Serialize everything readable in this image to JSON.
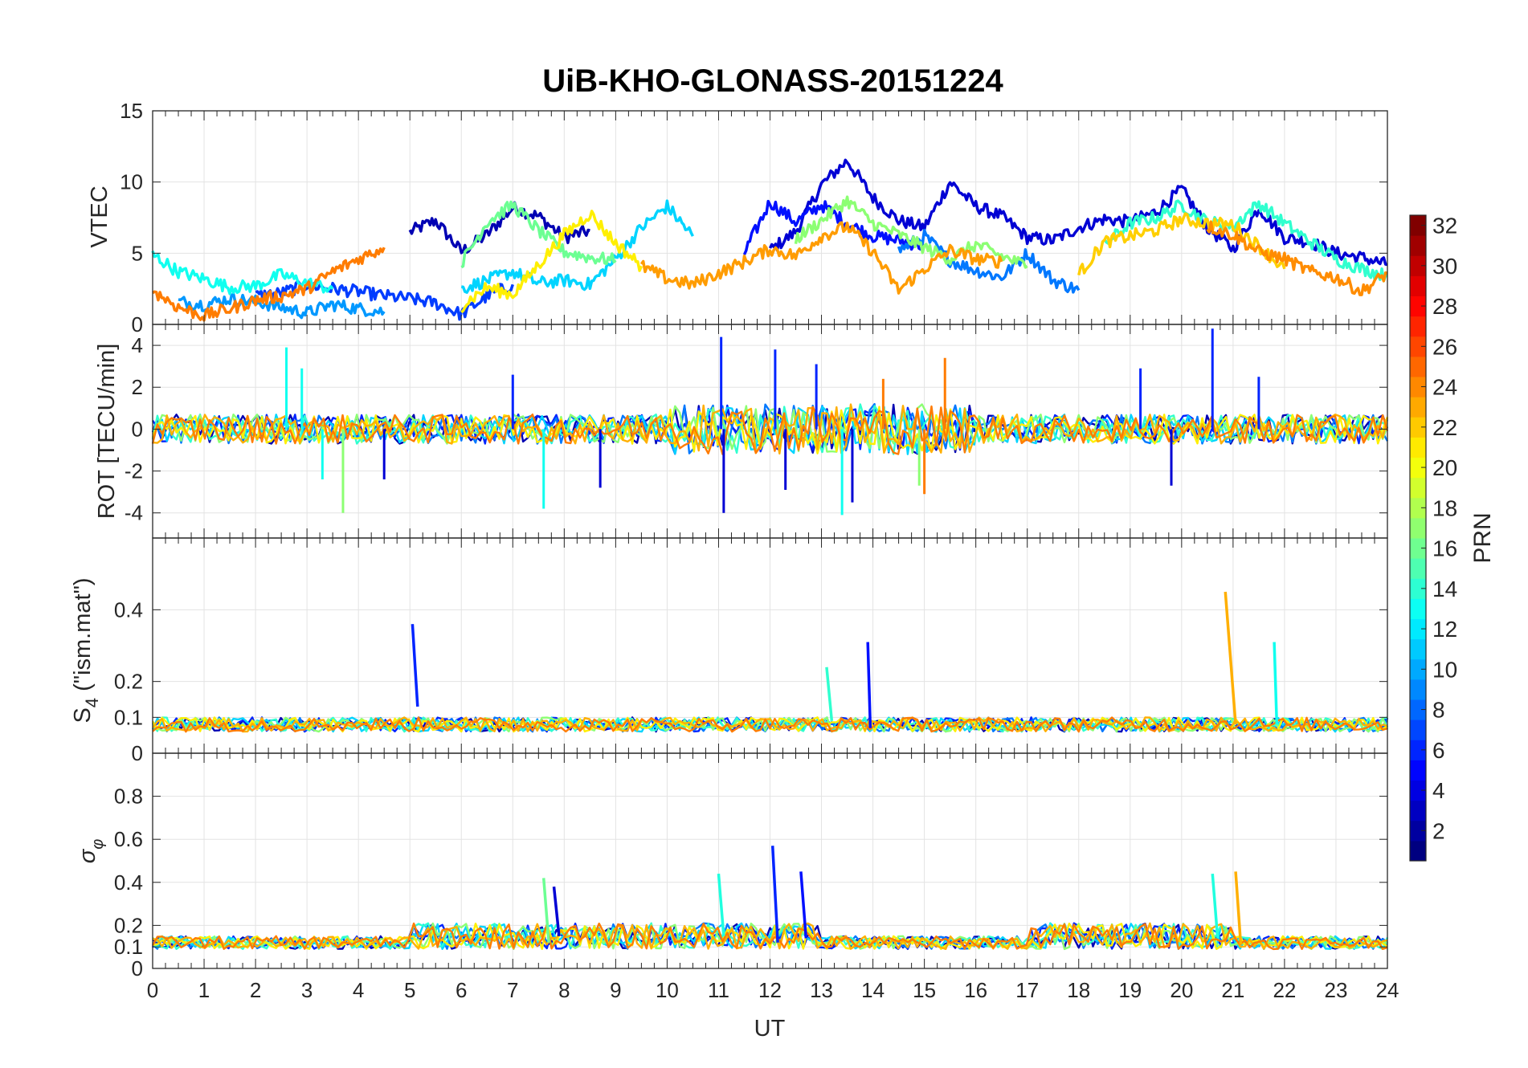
{
  "chart_data": {
    "type": "line",
    "title": "UiB-KHO-GLONASS-20151224",
    "xlabel": "UT",
    "xlim": [
      0,
      24
    ],
    "x_ticks": [
      "0",
      "1",
      "2",
      "3",
      "4",
      "5",
      "6",
      "7",
      "8",
      "9",
      "10",
      "11",
      "12",
      "13",
      "14",
      "15",
      "16",
      "17",
      "18",
      "19",
      "20",
      "21",
      "22",
      "23",
      "24"
    ],
    "grid": true,
    "colorbar": {
      "label": "PRN",
      "range": [
        1,
        32
      ],
      "ticks": [
        "2",
        "4",
        "6",
        "8",
        "10",
        "12",
        "14",
        "16",
        "18",
        "20",
        "22",
        "24",
        "26",
        "28",
        "30",
        "32"
      ],
      "colormap": "jet",
      "location": "right"
    },
    "panels": [
      {
        "id": "vtec",
        "ylabel": "VTEC",
        "ylim": [
          0,
          15
        ],
        "y_ticks": [
          "0",
          "5",
          "10",
          "15"
        ],
        "series": [
          {
            "prn": 2,
            "color": "#0000b3",
            "x": [
              5.0,
              5.5,
              6.0,
              6.5,
              7.0,
              7.5,
              8.0,
              8.5
            ],
            "y": [
              6.5,
              7.3,
              5.1,
              6.3,
              8.2,
              7.6,
              6.1,
              6.6
            ]
          },
          {
            "prn": 3,
            "color": "#0000d4",
            "x": [
              12.0,
              12.5,
              13.0,
              13.5,
              14.0,
              14.5,
              15.0,
              15.5,
              16.0,
              16.5,
              17.0,
              17.5,
              18.0,
              18.5,
              19.0,
              19.5,
              20.0,
              20.5,
              21.0,
              21.5,
              22.0,
              22.5,
              23.0,
              23.5,
              24.0
            ],
            "y": [
              5.2,
              6.5,
              9.8,
              11.5,
              8.9,
              7.3,
              6.8,
              10.0,
              8.3,
              7.6,
              6.1,
              5.9,
              6.8,
              7.4,
              7.2,
              7.9,
              9.5,
              6.8,
              5.3,
              8.2,
              6.1,
              5.8,
              5.0,
              4.7,
              4.2
            ]
          },
          {
            "prn": 5,
            "color": "#0010ff",
            "x": [
              11.5,
              12.0,
              12.5,
              13.0,
              13.5,
              14.0,
              14.5,
              15.0
            ],
            "y": [
              5.0,
              8.6,
              7.2,
              8.4,
              7.1,
              6.2,
              5.9,
              5.5
            ]
          },
          {
            "prn": 6,
            "color": "#003cff",
            "x": [
              2.0,
              2.5,
              3.0,
              3.5,
              4.0,
              4.5,
              5.0,
              5.5,
              6.0,
              6.5,
              7.0
            ],
            "y": [
              2.0,
              2.2,
              2.8,
              2.5,
              2.3,
              2.0,
              1.8,
              1.5,
              0.7,
              2.0,
              2.8
            ]
          },
          {
            "prn": 9,
            "color": "#0078ff",
            "x": [
              14.5,
              15.0,
              15.5,
              16.0,
              16.5,
              17.0,
              17.5,
              18.0
            ],
            "y": [
              5.2,
              6.2,
              4.5,
              3.8,
              3.3,
              5.0,
              3.1,
              2.4
            ]
          },
          {
            "prn": 10,
            "color": "#0098ff",
            "x": [
              0.5,
              1.0,
              1.5,
              2.0,
              2.5,
              3.0,
              3.5,
              4.0,
              4.5
            ],
            "y": [
              1.6,
              1.4,
              1.8,
              1.6,
              1.2,
              0.8,
              1.4,
              1.1,
              0.9
            ]
          },
          {
            "prn": 12,
            "color": "#00d4ff",
            "x": [
              6.0,
              6.5,
              7.0,
              7.5,
              8.0,
              8.5,
              9.0,
              9.5,
              10.0,
              10.5
            ],
            "y": [
              2.5,
              3.1,
              3.7,
              2.9,
              3.1,
              2.8,
              4.6,
              6.8,
              8.3,
              6.2
            ]
          },
          {
            "prn": 13,
            "color": "#10ffef",
            "x": [
              0.0,
              0.5,
              1.0,
              1.5,
              2.0,
              2.5,
              3.0,
              3.5
            ],
            "y": [
              4.9,
              3.7,
              3.2,
              2.6,
              2.7,
              3.5,
              2.9,
              2.5
            ]
          },
          {
            "prn": 15,
            "color": "#30ffcf",
            "x": [
              18.5,
              19.0,
              19.5,
              20.0,
              20.5,
              21.0,
              21.5,
              22.0,
              22.5,
              23.0,
              23.5,
              24.0
            ],
            "y": [
              5.6,
              7.1,
              7.5,
              8.4,
              7.2,
              6.9,
              8.5,
              7.1,
              5.8,
              4.6,
              3.9,
              3.4
            ]
          },
          {
            "prn": 17,
            "color": "#6cff93",
            "x": [
              6.0,
              6.5,
              7.0,
              7.5,
              8.0,
              8.5,
              9.0
            ],
            "y": [
              4.3,
              7.2,
              8.4,
              6.6,
              5.1,
              4.7,
              4.5
            ]
          },
          {
            "prn": 18,
            "color": "#8cff73",
            "x": [
              12.5,
              13.0,
              13.5,
              14.0,
              14.5,
              15.0,
              15.5,
              16.0,
              16.5,
              17.0
            ],
            "y": [
              6.0,
              7.3,
              8.7,
              7.1,
              6.3,
              5.4,
              4.6,
              5.6,
              4.8,
              4.1
            ]
          },
          {
            "prn": 20,
            "color": "#ffef00",
            "x": [
              6.0,
              6.5,
              7.0,
              7.5,
              8.0,
              8.5,
              9.0,
              9.5
            ],
            "y": [
              1.3,
              2.6,
              2.1,
              4.2,
              6.3,
              7.8,
              5.7,
              4.1
            ]
          },
          {
            "prn": 21,
            "color": "#ffcf00",
            "x": [
              18.0,
              18.5,
              19.0,
              19.5,
              20.0,
              20.5,
              21.0,
              21.5,
              22.0
            ],
            "y": [
              3.5,
              5.8,
              6.2,
              6.6,
              7.4,
              7.1,
              7.0,
              5.5,
              3.9
            ]
          },
          {
            "prn": 23,
            "color": "#ff9c00",
            "x": [
              9.5,
              10.0,
              10.5,
              11.0,
              11.5,
              12.0,
              12.5,
              13.0,
              13.5,
              14.0,
              14.5,
              15.0,
              15.5,
              16.0,
              16.5
            ],
            "y": [
              4.1,
              3.2,
              2.8,
              3.6,
              4.4,
              5.3,
              4.8,
              6.2,
              6.9,
              5.1,
              2.4,
              3.9,
              5.2,
              4.6,
              4.4
            ]
          },
          {
            "prn": 25,
            "color": "#ff7c00",
            "x": [
              0.0,
              0.5,
              1.0,
              1.5,
              2.0,
              2.5,
              3.0,
              3.5,
              4.0,
              4.5
            ],
            "y": [
              2.4,
              1.2,
              0.6,
              1.1,
              1.7,
              2.0,
              2.5,
              3.7,
              4.6,
              5.4
            ]
          },
          {
            "prn": 24,
            "color": "#ff8c00",
            "x": [
              20.5,
              21.0,
              21.5,
              22.0,
              22.5,
              23.0,
              23.5,
              24.0
            ],
            "y": [
              6.9,
              6.3,
              5.1,
              4.6,
              3.7,
              3.3,
              2.3,
              3.6
            ]
          }
        ]
      },
      {
        "id": "rot",
        "ylabel": "ROT [TECU/min]",
        "ylim": [
          -5.2,
          5
        ],
        "y_ticks": [
          "-4",
          "-2",
          "0",
          "2",
          "4"
        ],
        "series": [
          {
            "prn": 4,
            "color": "#0024ff",
            "x": [
              11.05,
              12.1,
              12.9,
              20.6,
              7.0,
              19.2,
              21.5
            ],
            "y": [
              4.4,
              3.8,
              3.1,
              4.8,
              2.6,
              2.9,
              2.5
            ]
          },
          {
            "prn": 3,
            "color": "#0000d4",
            "x": [
              11.1,
              12.3,
              13.6,
              8.7,
              4.5,
              19.8
            ],
            "y": [
              -4.0,
              -2.9,
              -3.5,
              -2.8,
              -2.4,
              -2.7
            ]
          },
          {
            "prn": 13,
            "color": "#10ffef",
            "x": [
              2.6,
              2.9,
              3.3,
              7.6,
              13.4
            ],
            "y": [
              3.9,
              2.9,
              -2.4,
              -3.8,
              -4.1
            ]
          },
          {
            "prn": 18,
            "color": "#8cff73",
            "x": [
              3.7,
              14.9
            ],
            "y": [
              -4.0,
              -2.7
            ]
          },
          {
            "prn": 25,
            "color": "#ff7c00",
            "x": [
              15.4,
              15.0,
              14.2
            ],
            "y": [
              3.4,
              -3.1,
              2.4
            ]
          }
        ]
      },
      {
        "id": "s4",
        "ylabel_main": "S",
        "ylabel_sub": "4",
        "ylabel_rest": " (\"ism.mat\")",
        "ylim": [
          0,
          0.6
        ],
        "y_ticks": [
          "0",
          "0.1",
          "0.2",
          "0.4"
        ],
        "series": [
          {
            "prn": 4,
            "color": "#0024ff",
            "x": [
              5.05,
              5.15
            ],
            "y": [
              0.36,
              0.13
            ]
          },
          {
            "prn": 5,
            "color": "#0010ff",
            "x": [
              13.9,
              13.95
            ],
            "y": [
              0.31,
              0.07
            ]
          },
          {
            "prn": 15,
            "color": "#30ffcf",
            "x": [
              13.1,
              13.2
            ],
            "y": [
              0.24,
              0.09
            ]
          },
          {
            "prn": 22,
            "color": "#ffaf00",
            "x": [
              20.85,
              21.05
            ],
            "y": [
              0.45,
              0.08
            ]
          },
          {
            "prn": 13,
            "color": "#10ffef",
            "x": [
              21.8,
              21.85
            ],
            "y": [
              0.31,
              0.08
            ]
          }
        ]
      },
      {
        "id": "sigma_phi",
        "ylabel_main": "σ",
        "ylabel_sub": "φ",
        "ylim": [
          0,
          1
        ],
        "y_ticks": [
          "0",
          "0.1",
          "0.2",
          "0.4",
          "0.6",
          "0.8"
        ],
        "series": [
          {
            "prn": 4,
            "color": "#0024ff",
            "x": [
              12.05,
              12.15
            ],
            "y": [
              0.57,
              0.12
            ]
          },
          {
            "prn": 3,
            "color": "#0000d4",
            "x": [
              7.8,
              7.9
            ],
            "y": [
              0.38,
              0.15
            ]
          },
          {
            "prn": 17,
            "color": "#6cff93",
            "x": [
              7.6,
              7.7
            ],
            "y": [
              0.42,
              0.12
            ]
          },
          {
            "prn": 14,
            "color": "#20ffdf",
            "x": [
              11.0,
              11.1,
              20.6,
              20.7
            ],
            "y": [
              0.44,
              0.15,
              0.44,
              0.14
            ]
          },
          {
            "prn": 22,
            "color": "#ffaf00",
            "x": [
              21.05,
              21.15
            ],
            "y": [
              0.45,
              0.11
            ]
          },
          {
            "prn": 5,
            "color": "#0010ff",
            "x": [
              12.6,
              12.7
            ],
            "y": [
              0.45,
              0.14
            ]
          }
        ]
      }
    ]
  }
}
